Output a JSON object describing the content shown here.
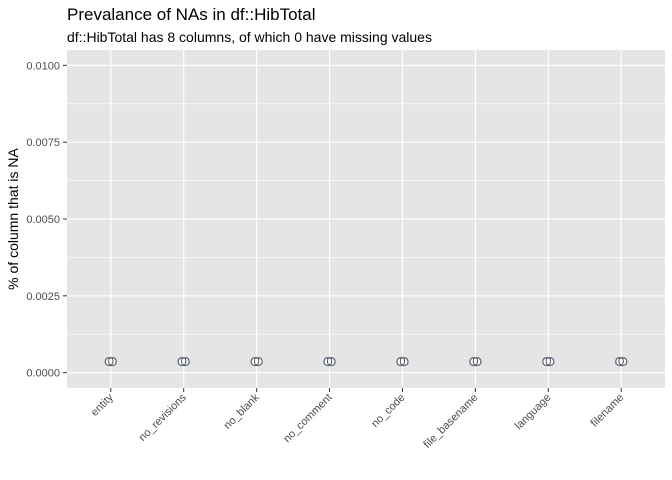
{
  "chart_data": {
    "type": "bar",
    "title": "Prevalance of NAs in df::HibTotal",
    "subtitle": "df::HibTotal has 8 columns, of which 0 have missing values",
    "xlabel": "",
    "ylabel": "% of column that is NA",
    "categories": [
      "entity",
      "no_revisions",
      "no_blank",
      "no_comment",
      "no_code",
      "file_basename",
      "language",
      "filename"
    ],
    "values": [
      0,
      0,
      0,
      0,
      0,
      0,
      0,
      0
    ],
    "data_labels": [
      "0",
      "0",
      "0",
      "0",
      "0",
      "0",
      "0",
      "0"
    ],
    "yticks": [
      0,
      0.0025,
      0.005,
      0.0075,
      0.01
    ],
    "ytick_labels": [
      "0.0000",
      "0.0025",
      "0.0050",
      "0.0075",
      "0.0100"
    ],
    "ylim": [
      -0.0005,
      0.0105
    ],
    "grid": true,
    "background": "#e5e5e5",
    "gridline_color": "#ffffff",
    "label_fill": "#ffffff",
    "label_border": "#5c6b80"
  }
}
